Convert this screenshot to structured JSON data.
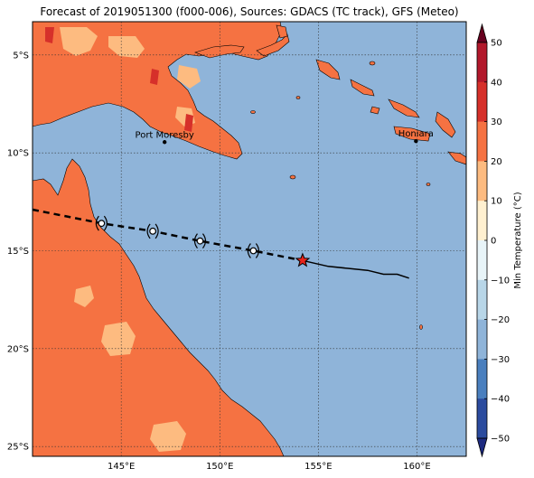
{
  "title": "Forecast of 2019051300 (f000-006), Sources: GDACS (TC track), GFS (Meteo)",
  "colors": {
    "ocean": "#8fb4d9",
    "land_warm": "#f57242",
    "land_mild": "#fdbb80",
    "land_hot": "#d6302a",
    "track": "#000000",
    "current_marker": "#e8241b"
  },
  "axes": {
    "lon_range": [
      140.5,
      162.5
    ],
    "lat_range": [
      -25.5,
      -3.3
    ],
    "lon_ticks": [
      {
        "value": 145,
        "label": "145°E"
      },
      {
        "value": 150,
        "label": "150°E"
      },
      {
        "value": 155,
        "label": "155°E"
      },
      {
        "value": 160,
        "label": "160°E"
      }
    ],
    "lat_ticks": [
      {
        "value": -5,
        "label": "5°S"
      },
      {
        "value": -10,
        "label": "10°S"
      },
      {
        "value": -15,
        "label": "15°S"
      },
      {
        "value": -20,
        "label": "20°S"
      },
      {
        "value": -25,
        "label": "25°S"
      }
    ]
  },
  "places": [
    {
      "name": "Port Moresby",
      "lon": 147.2,
      "lat": -9.45
    },
    {
      "name": "Honiara",
      "lon": 159.95,
      "lat": -9.4
    }
  ],
  "track": {
    "forecast_path": [
      [
        140.5,
        -12.9
      ],
      [
        144.0,
        -13.6
      ],
      [
        146.6,
        -14.0
      ],
      [
        149.0,
        -14.5
      ],
      [
        151.7,
        -15.0
      ],
      [
        154.2,
        -15.5
      ]
    ],
    "forecast_icons": [
      [
        144.0,
        -13.6
      ],
      [
        146.6,
        -14.0
      ],
      [
        149.0,
        -14.5
      ],
      [
        151.7,
        -15.0
      ]
    ],
    "past_path": [
      [
        154.2,
        -15.5
      ],
      [
        155.5,
        -15.8
      ],
      [
        156.5,
        -15.9
      ],
      [
        157.5,
        -16.0
      ],
      [
        158.3,
        -16.2
      ],
      [
        159.0,
        -16.2
      ],
      [
        159.6,
        -16.4
      ]
    ],
    "current_position": [
      154.2,
      -15.5
    ]
  },
  "colorbar": {
    "label": "Min Temperature (°C)",
    "ticks": [
      "50",
      "40",
      "30",
      "20",
      "10",
      "0",
      "−10",
      "−20",
      "−30",
      "−40",
      "−50"
    ],
    "bands": [
      "#67001f",
      "#b2182b",
      "#d6302a",
      "#f57242",
      "#fdbb80",
      "#fff0d0",
      "#e8f4f8",
      "#b8d6e8",
      "#8fb4d9",
      "#4a7fbe",
      "#2b4b9e",
      "#1d2a80"
    ]
  }
}
